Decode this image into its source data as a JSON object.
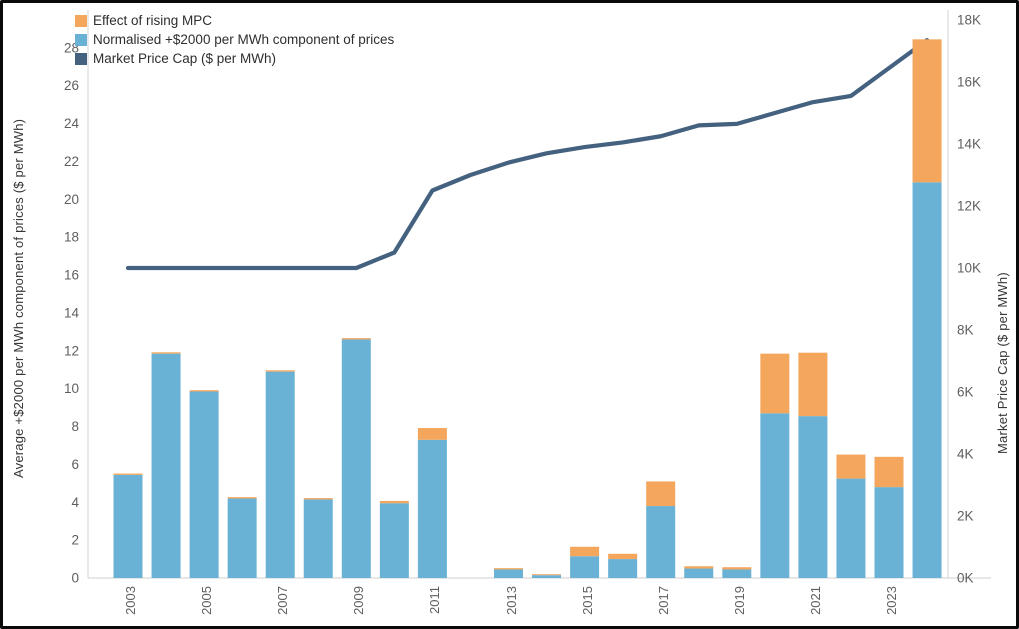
{
  "window": {
    "background": "#ffffff",
    "border_color": "#0a0a0a"
  },
  "legend": {
    "items": [
      {
        "label": "Effect of rising MPC",
        "color": "#f4a65c"
      },
      {
        "label": "Normalised +$2000 per MWh component of prices",
        "color": "#69b2d6"
      },
      {
        "label": "Market Price Cap ($ per MWh)",
        "color": "#44627f"
      }
    ]
  },
  "axes": {
    "left": {
      "title": "Average +$2000 per MWh component of prices ($ per MWh)",
      "tick_labels": [
        "0",
        "2",
        "4",
        "6",
        "8",
        "10",
        "12",
        "14",
        "16",
        "18",
        "20",
        "22",
        "24",
        "26",
        "28"
      ]
    },
    "right": {
      "title": "Market Price Cap ($ per MWh)",
      "tick_labels": [
        "0K",
        "2K",
        "4K",
        "6K",
        "8K",
        "10K",
        "12K",
        "14K",
        "16K",
        "18K"
      ]
    },
    "x": {
      "tick_labels": [
        "2003",
        "2005",
        "2007",
        "2009",
        "2011",
        "2013",
        "2015",
        "2017",
        "2019",
        "2021",
        "2023"
      ]
    }
  },
  "chart_data": {
    "type": "combo_stacked_bar_line",
    "x": [
      2003,
      2004,
      2005,
      2006,
      2007,
      2008,
      2009,
      2010,
      2011,
      2012,
      2013,
      2014,
      2015,
      2016,
      2017,
      2018,
      2019,
      2020,
      2021,
      2022,
      2023,
      2024
    ],
    "x_tick_years": [
      2003,
      2005,
      2007,
      2009,
      2011,
      2013,
      2015,
      2017,
      2019,
      2021,
      2023
    ],
    "series": [
      {
        "name": "Normalised +$2000 per MWh component of prices",
        "type": "bar",
        "axis": "left",
        "color": "#69b2d6",
        "values": [
          5.45,
          11.85,
          9.85,
          4.2,
          10.9,
          4.15,
          12.6,
          3.95,
          7.3,
          0,
          0.45,
          0.15,
          1.15,
          1.0,
          3.8,
          0.5,
          0.45,
          8.7,
          8.55,
          5.25,
          4.8,
          20.9
        ]
      },
      {
        "name": "Effect of rising MPC",
        "type": "bar",
        "axis": "left",
        "color": "#f4a65c",
        "values": [
          0.07,
          0.07,
          0.07,
          0.07,
          0.07,
          0.07,
          0.07,
          0.12,
          0.62,
          0,
          0.07,
          0.05,
          0.5,
          0.28,
          1.3,
          0.12,
          0.12,
          3.15,
          3.35,
          1.27,
          1.6,
          7.55
        ]
      },
      {
        "name": "Market Price Cap ($ per MWh)",
        "type": "line",
        "axis": "right",
        "color": "#44627f",
        "values": [
          10000,
          10000,
          10000,
          10000,
          10000,
          10000,
          10000,
          10500,
          12500,
          13000,
          13400,
          13700,
          13900,
          14050,
          14250,
          14600,
          14650,
          15000,
          15350,
          15550,
          16450,
          17350
        ]
      }
    ],
    "left_ylim": [
      0,
      30
    ],
    "right_ylim": [
      0,
      18320
    ],
    "left_ticks": [
      0,
      2,
      4,
      6,
      8,
      10,
      12,
      14,
      16,
      18,
      20,
      22,
      24,
      26,
      28
    ],
    "right_ticks": [
      0,
      2000,
      4000,
      6000,
      8000,
      10000,
      12000,
      14000,
      16000,
      18000
    ],
    "ylabel_left": "Average +$2000 per MWh component of prices ($ per MWh)",
    "ylabel_right": "Market Price Cap ($ per MWh)",
    "grid": false,
    "legend_position": "top-left"
  }
}
